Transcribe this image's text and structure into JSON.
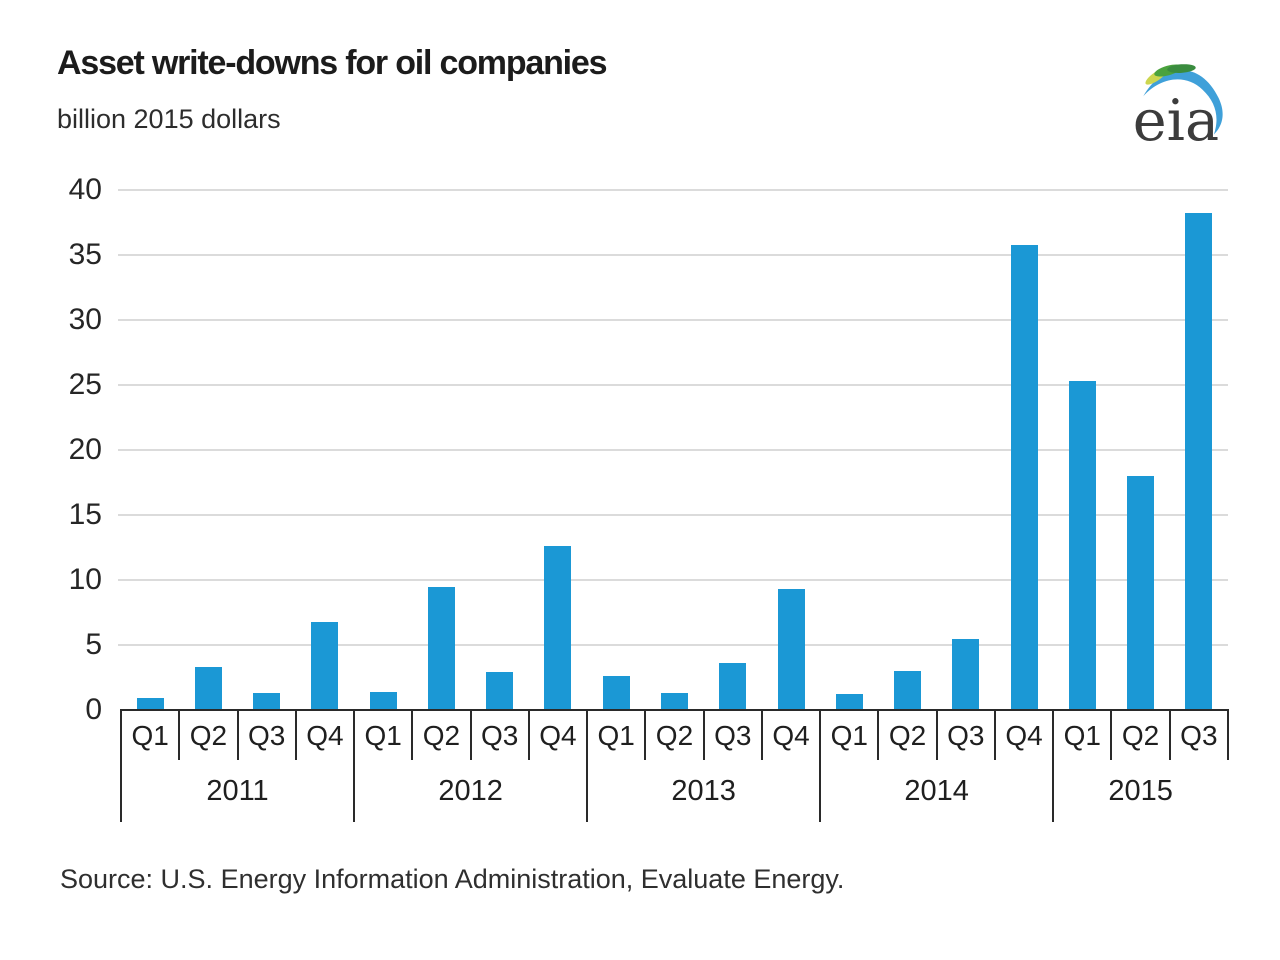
{
  "header": {
    "title": "Asset write-downs for oil companies",
    "subtitle": "billion 2015 dollars",
    "logo_text": "eia"
  },
  "footer": {
    "source": "Source:  U.S. Energy Information Administration, Evaluate Energy."
  },
  "colors": {
    "bar": "#1b98d5",
    "gridline": "#dbdbdb",
    "axis": "#2a2a2a",
    "logo_blue": "#3fa0d9",
    "logo_green": "#4aa23d",
    "logo_yellow": "#ccd64f",
    "logo_text": "#3c3c3c"
  },
  "chart_data": {
    "type": "bar",
    "title": "Asset write-downs for oil companies",
    "ylabel": "billion 2015 dollars",
    "ylim": [
      0,
      40
    ],
    "yticks": [
      0,
      5,
      10,
      15,
      20,
      25,
      30,
      35,
      40
    ],
    "grid": "horizontal",
    "legend": "none",
    "groups": [
      {
        "year": "2011",
        "quarters": [
          "Q1",
          "Q2",
          "Q3",
          "Q4"
        ],
        "values": [
          0.9,
          3.3,
          1.3,
          6.8
        ]
      },
      {
        "year": "2012",
        "quarters": [
          "Q1",
          "Q2",
          "Q3",
          "Q4"
        ],
        "values": [
          1.4,
          9.5,
          2.9,
          12.6
        ]
      },
      {
        "year": "2013",
        "quarters": [
          "Q1",
          "Q2",
          "Q3",
          "Q4"
        ],
        "values": [
          2.6,
          1.3,
          3.6,
          9.3
        ]
      },
      {
        "year": "2014",
        "quarters": [
          "Q1",
          "Q2",
          "Q3",
          "Q4"
        ],
        "values": [
          1.2,
          3.0,
          5.5,
          35.8
        ]
      },
      {
        "year": "2015",
        "quarters": [
          "Q1",
          "Q2",
          "Q3"
        ],
        "values": [
          25.3,
          18.0,
          38.2
        ]
      }
    ]
  }
}
